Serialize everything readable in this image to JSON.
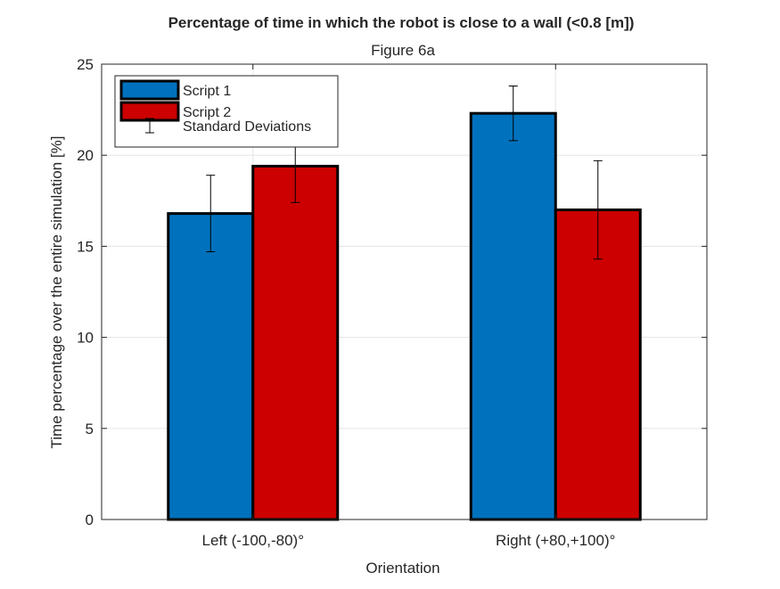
{
  "chart_data": {
    "type": "bar",
    "title": "Percentage of time in which the robot is close to a wall (<0.8 [m])",
    "subtitle": "Figure 6a",
    "xlabel": "Orientation",
    "ylabel": "Time percentage over the entire simulation [%]",
    "categories": [
      "Left (-100,-80)°",
      "Right (+80,+100)°"
    ],
    "series": [
      {
        "name": "Script 1",
        "color": "#0072BD",
        "values": [
          16.8,
          22.3
        ],
        "errors": [
          2.1,
          1.5
        ]
      },
      {
        "name": "Script 2",
        "color": "#CC0000",
        "values": [
          19.4,
          17.0
        ],
        "errors": [
          2.0,
          2.7
        ]
      }
    ],
    "errorbar_legend": "Standard Deviations",
    "ylim": [
      0,
      25
    ],
    "yticks": [
      0,
      5,
      10,
      15,
      20,
      25
    ],
    "grid": true,
    "legend_position": "top-left"
  }
}
